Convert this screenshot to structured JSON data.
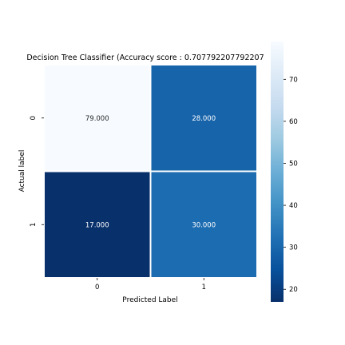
{
  "chart_data": {
    "type": "heatmap",
    "title": "Decision Tree Classifier (Accuracy score : 0.707792207792207",
    "xlabel": "Predicted Label",
    "ylabel": "Actual label",
    "x_categories": [
      "0",
      "1"
    ],
    "y_categories": [
      "0",
      "1"
    ],
    "values": [
      [
        79,
        28
      ],
      [
        17,
        30
      ]
    ],
    "cell_labels": [
      [
        "79.000",
        "28.000"
      ],
      [
        "17.000",
        "30.000"
      ]
    ],
    "colormap": "Blues",
    "colorbar": {
      "range": [
        17,
        79
      ],
      "ticks": [
        20,
        30,
        40,
        50,
        60,
        70
      ],
      "tick_labels": [
        "20",
        "30",
        "40",
        "50",
        "60",
        "70"
      ]
    },
    "cell_colors": [
      [
        "#f7fbff",
        "#1764ab"
      ],
      [
        "#08306b",
        "#1c6cb1"
      ]
    ],
    "grid_color": "#ffffff"
  }
}
